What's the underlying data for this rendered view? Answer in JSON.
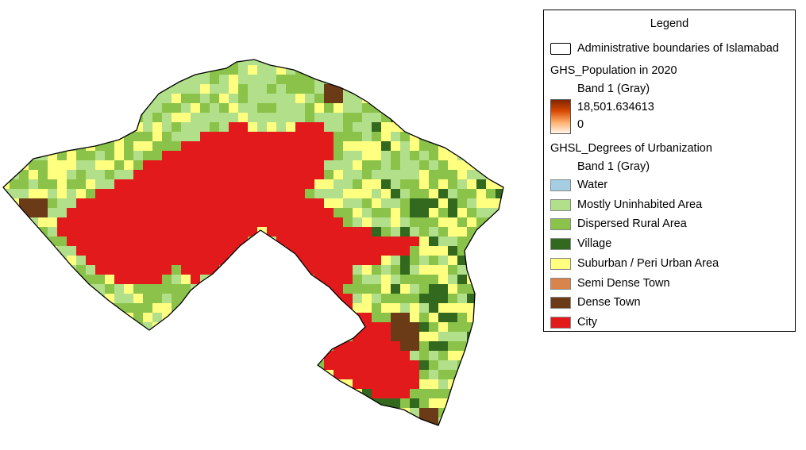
{
  "legend": {
    "title": "Legend",
    "boundary_label": "Administrative boundaries of Islamabad",
    "population_layer": {
      "name": "GHS_Population in 2020",
      "band": "Band 1 (Gray)",
      "max_label": "18,501.634613",
      "min_label": "0",
      "ramp_colors": [
        "#7f2704",
        "#d94801",
        "#fdae6b",
        "#fff5eb"
      ]
    },
    "urbanization_layer": {
      "name": "GHSL_Degrees of Urbanization",
      "band": "Band 1 (Gray)",
      "classes": [
        {
          "code": "W",
          "label": "Water",
          "color": "#a6cee3"
        },
        {
          "code": "M",
          "label": "Mostly Uninhabited Area",
          "color": "#b2df8a"
        },
        {
          "code": "R",
          "label": "Dispersed Rural Area",
          "color": "#8bc34a"
        },
        {
          "code": "V",
          "label": "Village",
          "color": "#33691e"
        },
        {
          "code": "S",
          "label": "Suburban / Peri Urban Area",
          "color": "#ffff80"
        },
        {
          "code": "T",
          "label": "Semi Dense Town",
          "color": "#d8844a"
        },
        {
          "code": "D",
          "label": "Dense Town",
          "color": "#6b3a17"
        },
        {
          "code": "C",
          "label": "City",
          "color": "#e31a1c"
        }
      ]
    }
  }
}
